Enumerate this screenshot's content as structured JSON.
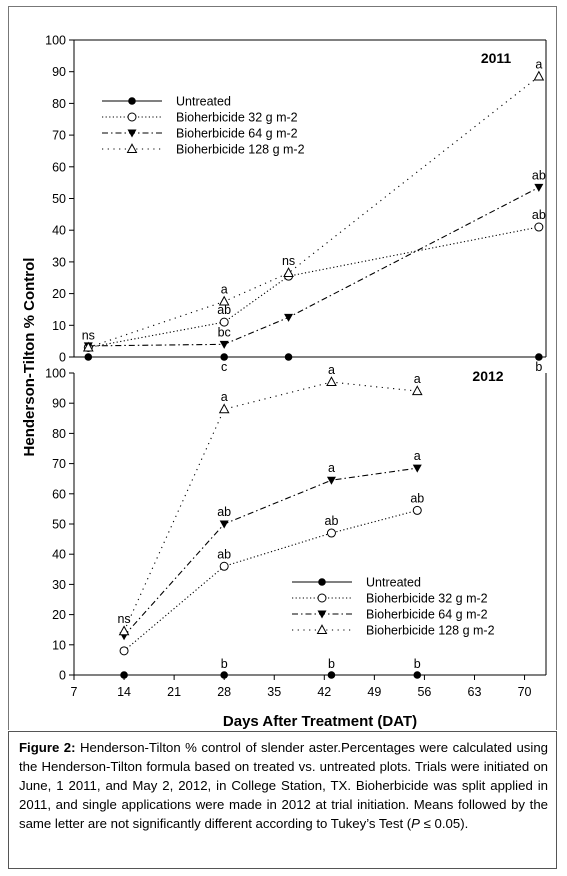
{
  "chart_data": [
    {
      "panel": "2011",
      "type": "line",
      "title": "2011",
      "ylim": [
        0,
        100
      ],
      "yticks": [
        "0",
        "10",
        "20",
        "30",
        "40",
        "50",
        "60",
        "70",
        "80",
        "90",
        "100"
      ],
      "legend_position": "top-left",
      "x": [
        9,
        28,
        37,
        72
      ],
      "series": [
        {
          "name": "Untreated",
          "marker": "filled-circle",
          "line": "solid",
          "values": [
            0,
            0,
            0,
            0
          ],
          "labels": [
            "",
            "c",
            "",
            "b"
          ]
        },
        {
          "name": "Bioherbicide 32 g m-2",
          "marker": "open-circle",
          "line": "dotted",
          "values": [
            3,
            11,
            25.5,
            41
          ],
          "labels": [
            "",
            "ab",
            "",
            "ab"
          ]
        },
        {
          "name": "Bioherbicide 64 g m-2",
          "marker": "filled-triangle-down",
          "line": "dash-dot",
          "values": [
            3.5,
            4,
            12.5,
            53.5
          ],
          "labels": [
            "",
            "bc",
            "",
            "ab"
          ]
        },
        {
          "name": "Bioherbicide 128 g m-2",
          "marker": "open-triangle-up",
          "line": "sparse-dotted",
          "values": [
            3,
            17.5,
            26.5,
            88.5
          ],
          "labels": [
            "ns",
            "a",
            "ns",
            "a"
          ]
        }
      ]
    },
    {
      "panel": "2012",
      "type": "line",
      "title": "2012",
      "ylim": [
        0,
        100
      ],
      "yticks": [
        "0",
        "10",
        "20",
        "30",
        "40",
        "50",
        "60",
        "70",
        "80",
        "90",
        "100"
      ],
      "legend_position": "bottom-right",
      "x": [
        14,
        28,
        43,
        55
      ],
      "series": [
        {
          "name": "Untreated",
          "marker": "filled-circle",
          "line": "solid",
          "values": [
            0,
            0,
            0,
            0
          ],
          "labels": [
            "",
            "b",
            "b",
            "b"
          ]
        },
        {
          "name": "Bioherbicide 32 g m-2",
          "marker": "open-circle",
          "line": "dotted",
          "values": [
            8,
            36,
            47,
            54.5
          ],
          "labels": [
            "",
            "ab",
            "ab",
            "ab"
          ]
        },
        {
          "name": "Bioherbicide 64 g m-2",
          "marker": "filled-triangle-down",
          "line": "dash-dot",
          "values": [
            13,
            50,
            64.5,
            68.5
          ],
          "labels": [
            "",
            "ab",
            "a",
            "a"
          ]
        },
        {
          "name": "Bioherbicide 128 g m-2",
          "marker": "open-triangle-up",
          "line": "sparse-dotted",
          "values": [
            14.5,
            88,
            97,
            94
          ],
          "labels": [
            "ns",
            "a",
            "a",
            "a"
          ]
        }
      ]
    }
  ],
  "xaxis": {
    "label": "Days After Treatment (DAT)",
    "ticks": [
      7,
      14,
      21,
      28,
      35,
      42,
      49,
      56,
      63,
      70
    ],
    "xlim": [
      7,
      73
    ]
  },
  "yaxis": {
    "label": "Henderson-Tilton % Control"
  },
  "caption": {
    "label": "Figure 2:",
    "text": " Henderson-Tilton % control of slender aster.Percentages were calculated using the Henderson-Tilton formula based on treated vs. untreated plots. Trials were initiated on June, 1 2011, and May 2, 2012, in College Station, TX. Bioherbicide was split applied in 2011, and single applications were made in 2012 at trial initiation. Means followed by the same letter are not significantly different according to Tukey’s Test (",
    "p_symbol": "P",
    "p_rest": " ≤ 0.05)."
  }
}
